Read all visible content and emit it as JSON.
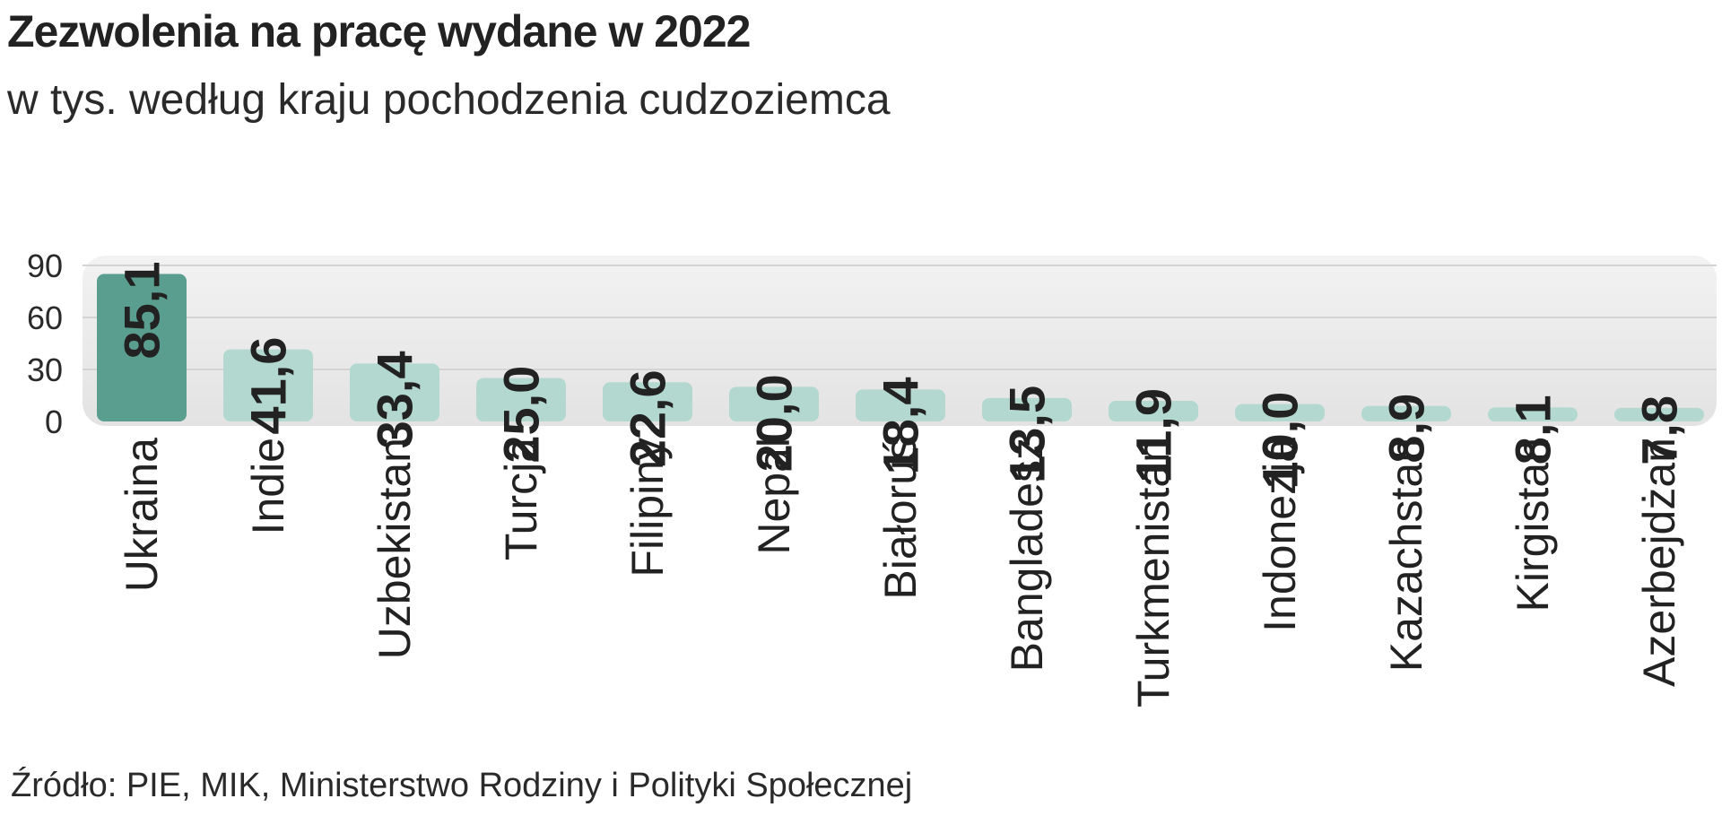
{
  "header": {
    "title": "Zezwolenia na pracę wydane w 2022",
    "subtitle": "w tys. według kraju pochodzenia cudzoziemca"
  },
  "footer": {
    "source": "Źródło: PIE, MIK, Ministerstwo Rodziny i Polityki Społecznej"
  },
  "chart_data": {
    "type": "bar",
    "title": "Zezwolenia na pracę wydane w 2022",
    "subtitle": "w tys. według kraju pochodzenia cudzoziemca",
    "categories": [
      "Ukraina",
      "Indie",
      "Uzbekistan",
      "Turcja",
      "Filipiny",
      "Nepal",
      "Białoruś",
      "Bangladesz",
      "Turkmenistan",
      "Indonezja",
      "Kazachstan",
      "Kirgistan",
      "Azerbejdżan"
    ],
    "values": [
      85.1,
      41.6,
      33.4,
      25.0,
      22.6,
      20.0,
      18.4,
      13.5,
      11.9,
      10.0,
      8.9,
      8.1,
      7.8
    ],
    "value_labels": [
      "85,1",
      "41,6",
      "33,4",
      "25,0",
      "22,6",
      "20,0",
      "18,4",
      "13,5",
      "11,9",
      "10,0",
      "8,9",
      "8,1",
      "7,8"
    ],
    "yticks": [
      0,
      30,
      60,
      90
    ],
    "ylim": [
      0,
      90
    ],
    "xlabel": "",
    "ylabel": "",
    "grid": true,
    "legend": "none",
    "colors": {
      "highlight_bar": "#5a9e8f",
      "bar": "#b2d8cf",
      "plot_background": "#e9e9e9",
      "gridline": "#d4d4d4"
    }
  }
}
